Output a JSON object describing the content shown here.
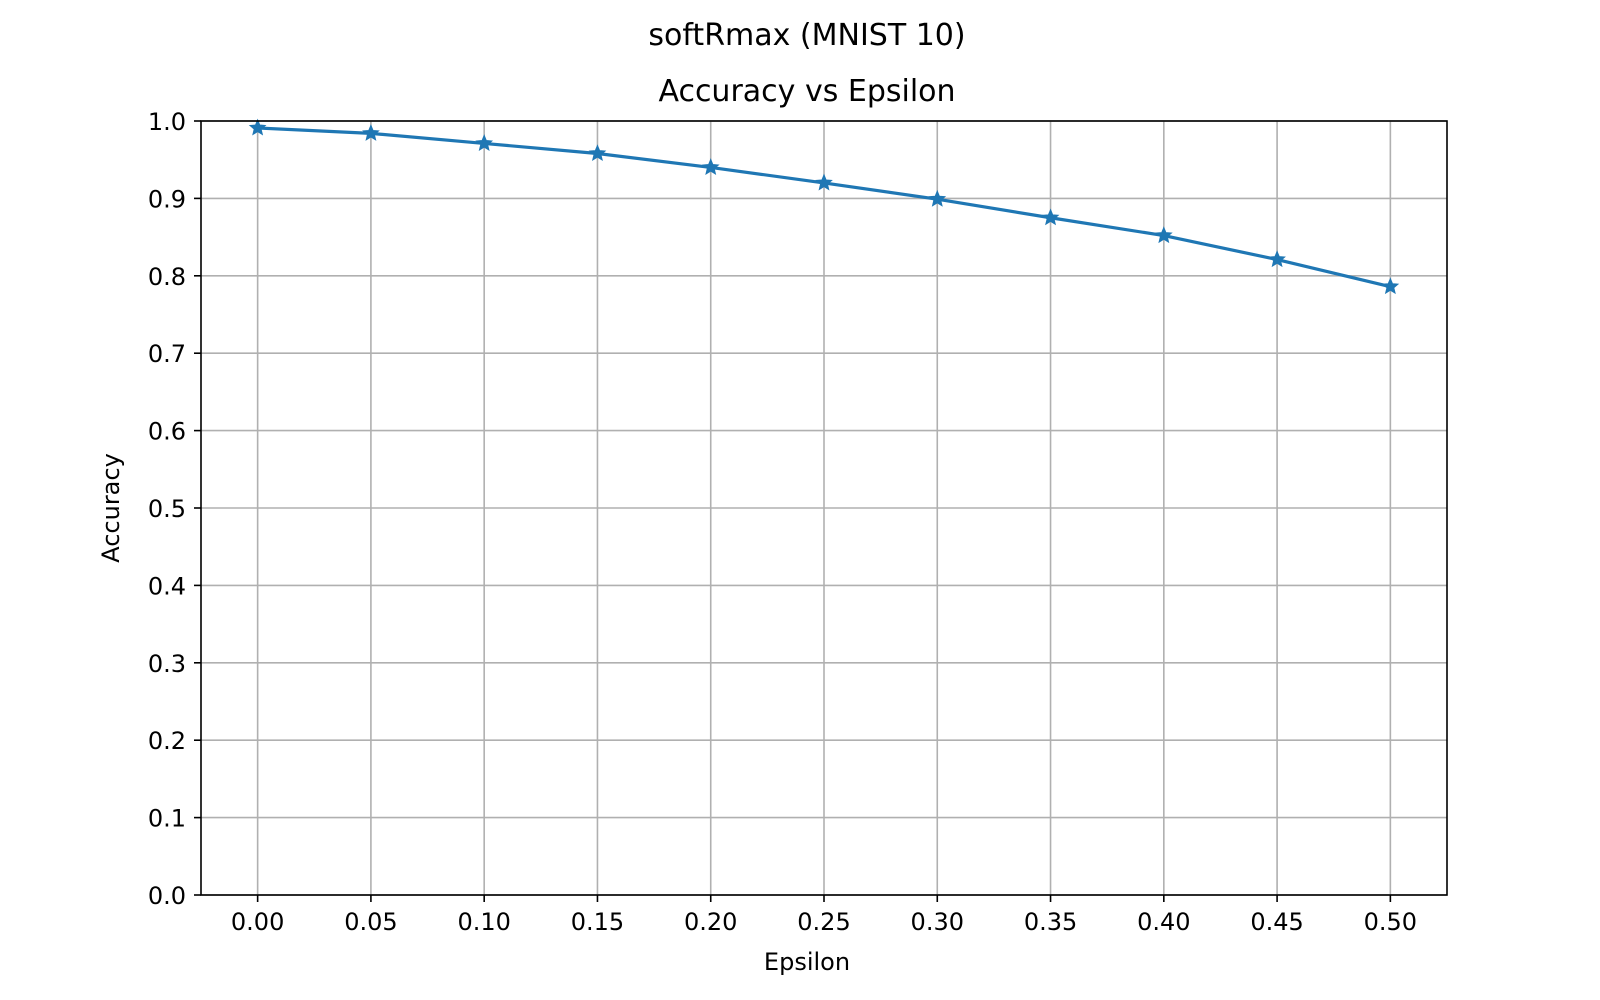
{
  "chart_data": {
    "type": "line",
    "suptitle": "softRmax (MNIST 10)",
    "title": "Accuracy vs Epsilon",
    "xlabel": "Epsilon",
    "ylabel": "Accuracy",
    "x": [
      0.0,
      0.05,
      0.1,
      0.15,
      0.2,
      0.25,
      0.3,
      0.35,
      0.4,
      0.45,
      0.5
    ],
    "series": [
      {
        "values": [
          0.991,
          0.984,
          0.971,
          0.958,
          0.94,
          0.92,
          0.899,
          0.875,
          0.852,
          0.821,
          0.786
        ],
        "color": "#1f77b4",
        "marker": "star"
      }
    ],
    "xlim": [
      -0.025,
      0.525
    ],
    "ylim": [
      0.0,
      1.0
    ],
    "x_ticks": [
      0.0,
      0.05,
      0.1,
      0.15,
      0.2,
      0.25,
      0.3,
      0.35,
      0.4,
      0.45,
      0.5
    ],
    "x_tick_labels": [
      "0.00",
      "0.05",
      "0.10",
      "0.15",
      "0.20",
      "0.25",
      "0.30",
      "0.35",
      "0.40",
      "0.45",
      "0.50"
    ],
    "y_ticks": [
      0.0,
      0.1,
      0.2,
      0.3,
      0.4,
      0.5,
      0.6,
      0.7,
      0.8,
      0.9,
      1.0
    ],
    "y_tick_labels": [
      "0.0",
      "0.1",
      "0.2",
      "0.3",
      "0.4",
      "0.5",
      "0.6",
      "0.7",
      "0.8",
      "0.9",
      "1.0"
    ],
    "grid": true,
    "grid_color": "#b0b0b0",
    "legend": false
  }
}
